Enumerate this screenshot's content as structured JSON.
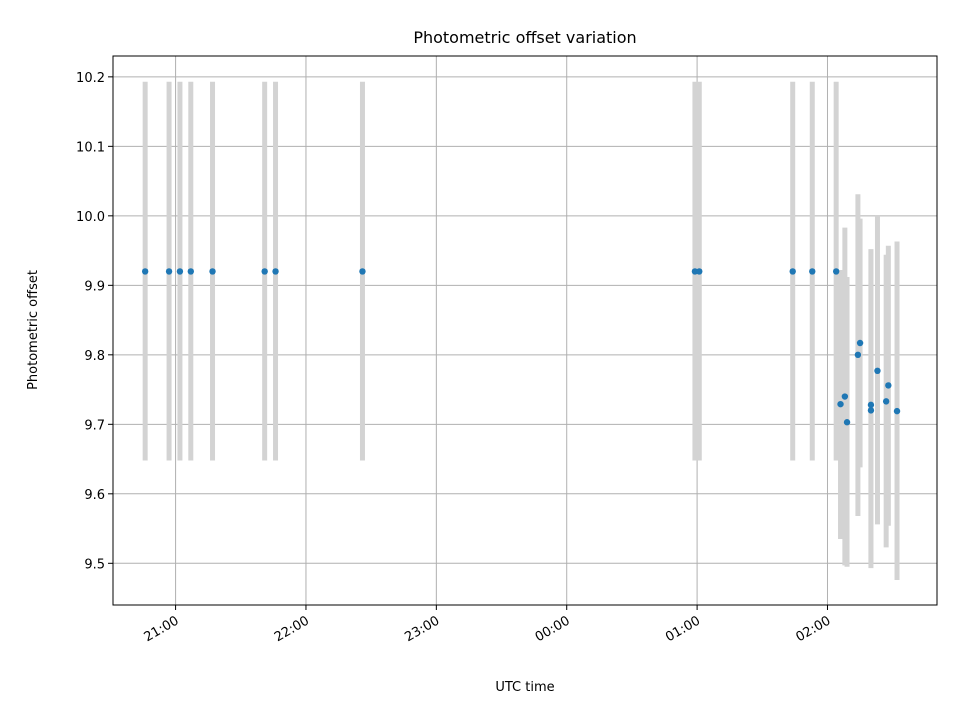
{
  "chart_data": {
    "type": "scatter",
    "title": "Photometric offset variation",
    "xlabel": "UTC time",
    "ylabel": "Photometric offset",
    "x_axis_kind": "time",
    "x_ticks": [
      "21:00",
      "22:00",
      "23:00",
      "00:00",
      "01:00",
      "02:00"
    ],
    "x_tick_values": [
      21.0,
      22.0,
      23.0,
      24.0,
      25.0,
      26.0
    ],
    "xlim": [
      20.52,
      26.84
    ],
    "y_ticks": [
      "9.5",
      "9.6",
      "9.7",
      "9.8",
      "9.9",
      "10.0",
      "10.1",
      "10.2"
    ],
    "y_tick_values": [
      9.5,
      9.6,
      9.7,
      9.8,
      9.9,
      10.0,
      10.1,
      10.2
    ],
    "ylim": [
      9.44,
      10.23
    ],
    "grid": true,
    "marker_color": "#1f77b4",
    "errorbar_color": "#d3d3d3",
    "points": [
      {
        "time": "20:46",
        "y": 9.92,
        "yerr_low": 9.648,
        "yerr_high": 10.193
      },
      {
        "time": "20:57",
        "y": 9.92,
        "yerr_low": 9.648,
        "yerr_high": 10.193
      },
      {
        "time": "21:02",
        "y": 9.92,
        "yerr_low": 9.648,
        "yerr_high": 10.193
      },
      {
        "time": "21:07",
        "y": 9.92,
        "yerr_low": 9.648,
        "yerr_high": 10.193
      },
      {
        "time": "21:17",
        "y": 9.92,
        "yerr_low": 9.648,
        "yerr_high": 10.193
      },
      {
        "time": "21:41",
        "y": 9.92,
        "yerr_low": 9.648,
        "yerr_high": 10.193
      },
      {
        "time": "21:46",
        "y": 9.92,
        "yerr_low": 9.648,
        "yerr_high": 10.193
      },
      {
        "time": "22:26",
        "y": 9.92,
        "yerr_low": 9.648,
        "yerr_high": 10.193
      },
      {
        "time": "00:59",
        "y": 9.92,
        "yerr_low": 9.648,
        "yerr_high": 10.193
      },
      {
        "time": "01:01",
        "y": 9.92,
        "yerr_low": 9.648,
        "yerr_high": 10.193
      },
      {
        "time": "01:44",
        "y": 9.92,
        "yerr_low": 9.648,
        "yerr_high": 10.193
      },
      {
        "time": "01:53",
        "y": 9.92,
        "yerr_low": 9.648,
        "yerr_high": 10.193
      },
      {
        "time": "02:04",
        "y": 9.92,
        "yerr_low": 9.648,
        "yerr_high": 10.193
      },
      {
        "time": "02:06",
        "y": 9.729,
        "yerr_low": 9.535,
        "yerr_high": 9.922
      },
      {
        "time": "02:08",
        "y": 9.74,
        "yerr_low": 9.497,
        "yerr_high": 9.983
      },
      {
        "time": "02:09",
        "y": 9.703,
        "yerr_low": 9.495,
        "yerr_high": 9.912
      },
      {
        "time": "02:14",
        "y": 9.8,
        "yerr_low": 9.568,
        "yerr_high": 10.031
      },
      {
        "time": "02:15",
        "y": 9.817,
        "yerr_low": 9.638,
        "yerr_high": 9.996
      },
      {
        "time": "02:20",
        "y": 9.72,
        "yerr_low": 9.493,
        "yerr_high": 9.952
      },
      {
        "time": "02:20",
        "y": 9.728,
        "yerr_low": 9.5,
        "yerr_high": 9.952
      },
      {
        "time": "02:23",
        "y": 9.777,
        "yerr_low": 9.556,
        "yerr_high": 10.0
      },
      {
        "time": "02:27",
        "y": 9.733,
        "yerr_low": 9.523,
        "yerr_high": 9.944
      },
      {
        "time": "02:28",
        "y": 9.756,
        "yerr_low": 9.554,
        "yerr_high": 9.957
      },
      {
        "time": "02:32",
        "y": 9.719,
        "yerr_low": 9.476,
        "yerr_high": 9.963
      }
    ]
  }
}
